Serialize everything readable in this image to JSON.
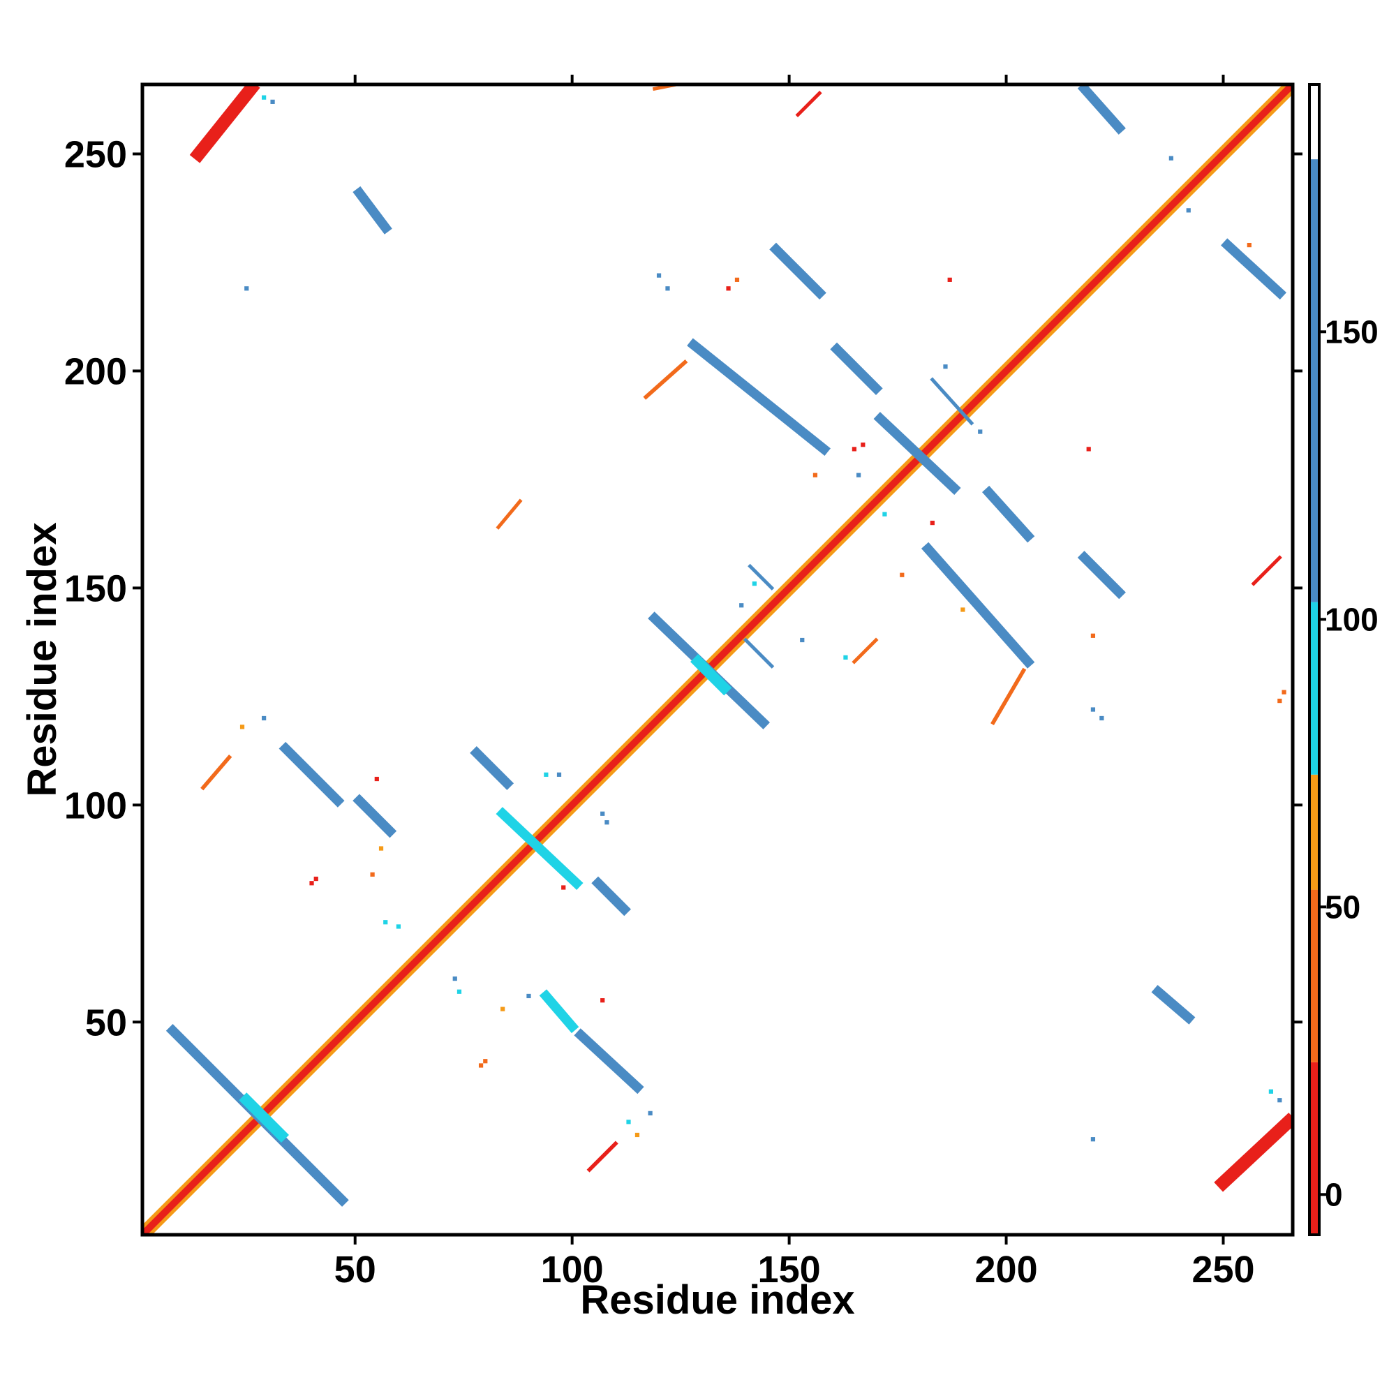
{
  "chart_data": {
    "type": "heatmap",
    "title": "",
    "xlabel": "Residue index",
    "ylabel": "Residue index",
    "xlim": [
      1,
      266
    ],
    "ylim": [
      1,
      266
    ],
    "x_ticks": [
      50,
      100,
      150,
      200,
      250
    ],
    "y_ticks": [
      50,
      100,
      150,
      200,
      250
    ],
    "colorbar": {
      "ticks": [
        0,
        50,
        100,
        150
      ],
      "range": [
        -7,
        193
      ],
      "bands": [
        {
          "from": -7,
          "to": 23,
          "color": "#e8201a"
        },
        {
          "from": 23,
          "to": 53,
          "color": "#f26a1b"
        },
        {
          "from": 53,
          "to": 73,
          "color": "#f59a17"
        },
        {
          "from": 73,
          "to": 103,
          "color": "#1fd3e6"
        },
        {
          "from": 103,
          "to": 180,
          "color": "#4a8bc4"
        },
        {
          "from": 180,
          "to": 193,
          "color": "#ffffff"
        }
      ]
    },
    "colors": {
      "red": "#e8201a",
      "orange_red": "#f26a1b",
      "orange": "#f59a17",
      "cyan": "#1fd3e6",
      "steel_blue": "#4a8bc4"
    },
    "diagonal": {
      "from": 1,
      "to": 266,
      "core_color": "#e8201a",
      "edge_color": "#f59a17"
    },
    "segments": [
      {
        "x1": 14,
        "y1": 250,
        "x2": 26,
        "y2": 265,
        "color": "#e8201a",
        "width": 3
      },
      {
        "x1": 250,
        "y1": 13,
        "x2": 265,
        "y2": 27,
        "color": "#e8201a",
        "width": 3
      },
      {
        "x1": 8,
        "y1": 48,
        "x2": 47,
        "y2": 9,
        "color": "#4a8bc4",
        "width": 2.2
      },
      {
        "x1": 25,
        "y1": 32,
        "x2": 33,
        "y2": 24,
        "color": "#1fd3e6",
        "width": 2.5
      },
      {
        "x1": 34,
        "y1": 113,
        "x2": 46,
        "y2": 101,
        "color": "#4a8bc4",
        "width": 2.2
      },
      {
        "x1": 51,
        "y1": 101,
        "x2": 58,
        "y2": 94,
        "color": "#4a8bc4",
        "width": 2.2
      },
      {
        "x1": 51,
        "y1": 241,
        "x2": 57,
        "y2": 233,
        "color": "#4a8bc4",
        "width": 2.2
      },
      {
        "x1": 78,
        "y1": 112,
        "x2": 85,
        "y2": 105,
        "color": "#4a8bc4",
        "width": 2.2
      },
      {
        "x1": 84,
        "y1": 98,
        "x2": 101,
        "y2": 82,
        "color": "#1fd3e6",
        "width": 2.2
      },
      {
        "x1": 106,
        "y1": 82,
        "x2": 112,
        "y2": 76,
        "color": "#4a8bc4",
        "width": 2.2
      },
      {
        "x1": 94,
        "y1": 56,
        "x2": 100,
        "y2": 49,
        "color": "#1fd3e6",
        "width": 2.2
      },
      {
        "x1": 102,
        "y1": 47,
        "x2": 115,
        "y2": 35,
        "color": "#4a8bc4",
        "width": 2.2
      },
      {
        "x1": 119,
        "y1": 143,
        "x2": 144,
        "y2": 119,
        "color": "#4a8bc4",
        "width": 2.2
      },
      {
        "x1": 129,
        "y1": 133,
        "x2": 135,
        "y2": 127,
        "color": "#1fd3e6",
        "width": 2.5
      },
      {
        "x1": 128,
        "y1": 206,
        "x2": 158,
        "y2": 182,
        "color": "#4a8bc4",
        "width": 2.2
      },
      {
        "x1": 147,
        "y1": 228,
        "x2": 157,
        "y2": 218,
        "color": "#4a8bc4",
        "width": 2.2
      },
      {
        "x1": 161,
        "y1": 205,
        "x2": 170,
        "y2": 196,
        "color": "#4a8bc4",
        "width": 2.2
      },
      {
        "x1": 171,
        "y1": 189,
        "x2": 188,
        "y2": 173,
        "color": "#4a8bc4",
        "width": 2.2
      },
      {
        "x1": 182,
        "y1": 159,
        "x2": 205,
        "y2": 133,
        "color": "#4a8bc4",
        "width": 2.2
      },
      {
        "x1": 196,
        "y1": 172,
        "x2": 205,
        "y2": 162,
        "color": "#4a8bc4",
        "width": 2.2
      },
      {
        "x1": 218,
        "y1": 157,
        "x2": 226,
        "y2": 149,
        "color": "#4a8bc4",
        "width": 2.2
      },
      {
        "x1": 218,
        "y1": 265,
        "x2": 226,
        "y2": 256,
        "color": "#4a8bc4",
        "width": 2.2
      },
      {
        "x1": 251,
        "y1": 229,
        "x2": 263,
        "y2": 218,
        "color": "#4a8bc4",
        "width": 2.2
      },
      {
        "x1": 235,
        "y1": 57,
        "x2": 242,
        "y2": 51,
        "color": "#4a8bc4",
        "width": 2.2
      },
      {
        "x1": 117,
        "y1": 194,
        "x2": 126,
        "y2": 202,
        "color": "#f26a1b",
        "width": 0.9
      },
      {
        "x1": 197,
        "y1": 119,
        "x2": 204,
        "y2": 131,
        "color": "#f26a1b",
        "width": 0.9
      },
      {
        "x1": 104,
        "y1": 16,
        "x2": 110,
        "y2": 22,
        "color": "#e8201a",
        "width": 0.9
      },
      {
        "x1": 15,
        "y1": 104,
        "x2": 21,
        "y2": 111,
        "color": "#f26a1b",
        "width": 0.9
      },
      {
        "x1": 257,
        "y1": 151,
        "x2": 263,
        "y2": 157,
        "color": "#e8201a",
        "width": 0.8
      },
      {
        "x1": 152,
        "y1": 259,
        "x2": 157,
        "y2": 264,
        "color": "#e8201a",
        "width": 0.8
      },
      {
        "x1": 165,
        "y1": 133,
        "x2": 170,
        "y2": 138,
        "color": "#f26a1b",
        "width": 0.8
      },
      {
        "x1": 83,
        "y1": 164,
        "x2": 88,
        "y2": 170,
        "color": "#f26a1b",
        "width": 0.8
      },
      {
        "x1": 119,
        "y1": 265,
        "x2": 124,
        "y2": 266,
        "color": "#f26a1b",
        "width": 0.8
      },
      {
        "x1": 140,
        "y1": 138,
        "x2": 146,
        "y2": 132,
        "color": "#4a8bc4",
        "width": 0.8
      },
      {
        "x1": 183,
        "y1": 198,
        "x2": 192,
        "y2": 188,
        "color": "#4a8bc4",
        "width": 0.8
      },
      {
        "x1": 141,
        "y1": 155,
        "x2": 146,
        "y2": 150,
        "color": "#4a8bc4",
        "width": 0.8
      }
    ],
    "points": [
      {
        "x": 25,
        "y": 219,
        "color": "#4a8bc4"
      },
      {
        "x": 29,
        "y": 263,
        "color": "#1fd3e6"
      },
      {
        "x": 31,
        "y": 262,
        "color": "#4a8bc4"
      },
      {
        "x": 24,
        "y": 118,
        "color": "#f59a17"
      },
      {
        "x": 29,
        "y": 120,
        "color": "#4a8bc4"
      },
      {
        "x": 40,
        "y": 82,
        "color": "#e8201a"
      },
      {
        "x": 41,
        "y": 83,
        "color": "#e8201a"
      },
      {
        "x": 55,
        "y": 106,
        "color": "#e8201a"
      },
      {
        "x": 56,
        "y": 90,
        "color": "#f59a17"
      },
      {
        "x": 54,
        "y": 84,
        "color": "#f26a1b"
      },
      {
        "x": 57,
        "y": 73,
        "color": "#1fd3e6"
      },
      {
        "x": 60,
        "y": 72,
        "color": "#1fd3e6"
      },
      {
        "x": 73,
        "y": 60,
        "color": "#4a8bc4"
      },
      {
        "x": 74,
        "y": 57,
        "color": "#1fd3e6"
      },
      {
        "x": 79,
        "y": 40,
        "color": "#f26a1b"
      },
      {
        "x": 80,
        "y": 41,
        "color": "#f26a1b"
      },
      {
        "x": 84,
        "y": 53,
        "color": "#f59a17"
      },
      {
        "x": 90,
        "y": 56,
        "color": "#4a8bc4"
      },
      {
        "x": 94,
        "y": 107,
        "color": "#1fd3e6"
      },
      {
        "x": 97,
        "y": 107,
        "color": "#4a8bc4"
      },
      {
        "x": 107,
        "y": 98,
        "color": "#4a8bc4"
      },
      {
        "x": 108,
        "y": 96,
        "color": "#4a8bc4"
      },
      {
        "x": 107,
        "y": 55,
        "color": "#e8201a"
      },
      {
        "x": 98,
        "y": 81,
        "color": "#e8201a"
      },
      {
        "x": 113,
        "y": 27,
        "color": "#1fd3e6"
      },
      {
        "x": 115,
        "y": 24,
        "color": "#f59a17"
      },
      {
        "x": 118,
        "y": 29,
        "color": "#4a8bc4"
      },
      {
        "x": 120,
        "y": 222,
        "color": "#4a8bc4"
      },
      {
        "x": 122,
        "y": 219,
        "color": "#4a8bc4"
      },
      {
        "x": 136,
        "y": 219,
        "color": "#e8201a"
      },
      {
        "x": 138,
        "y": 221,
        "color": "#f26a1b"
      },
      {
        "x": 139,
        "y": 146,
        "color": "#4a8bc4"
      },
      {
        "x": 142,
        "y": 151,
        "color": "#1fd3e6"
      },
      {
        "x": 153,
        "y": 138,
        "color": "#4a8bc4"
      },
      {
        "x": 156,
        "y": 176,
        "color": "#f26a1b"
      },
      {
        "x": 163,
        "y": 134,
        "color": "#1fd3e6"
      },
      {
        "x": 165,
        "y": 182,
        "color": "#e8201a"
      },
      {
        "x": 167,
        "y": 183,
        "color": "#e8201a"
      },
      {
        "x": 166,
        "y": 176,
        "color": "#4a8bc4"
      },
      {
        "x": 172,
        "y": 167,
        "color": "#1fd3e6"
      },
      {
        "x": 176,
        "y": 153,
        "color": "#f26a1b"
      },
      {
        "x": 183,
        "y": 165,
        "color": "#e8201a"
      },
      {
        "x": 187,
        "y": 221,
        "color": "#e8201a"
      },
      {
        "x": 186,
        "y": 201,
        "color": "#4a8bc4"
      },
      {
        "x": 190,
        "y": 145,
        "color": "#f59a17"
      },
      {
        "x": 194,
        "y": 186,
        "color": "#4a8bc4"
      },
      {
        "x": 220,
        "y": 139,
        "color": "#f26a1b"
      },
      {
        "x": 219,
        "y": 182,
        "color": "#e8201a"
      },
      {
        "x": 220,
        "y": 122,
        "color": "#4a8bc4"
      },
      {
        "x": 222,
        "y": 120,
        "color": "#4a8bc4"
      },
      {
        "x": 220,
        "y": 23,
        "color": "#4a8bc4"
      },
      {
        "x": 238,
        "y": 249,
        "color": "#4a8bc4"
      },
      {
        "x": 242,
        "y": 237,
        "color": "#4a8bc4"
      },
      {
        "x": 256,
        "y": 229,
        "color": "#f26a1b"
      },
      {
        "x": 261,
        "y": 34,
        "color": "#1fd3e6"
      },
      {
        "x": 263,
        "y": 32,
        "color": "#4a8bc4"
      },
      {
        "x": 263,
        "y": 124,
        "color": "#f26a1b"
      },
      {
        "x": 264,
        "y": 126,
        "color": "#f26a1b"
      }
    ]
  }
}
